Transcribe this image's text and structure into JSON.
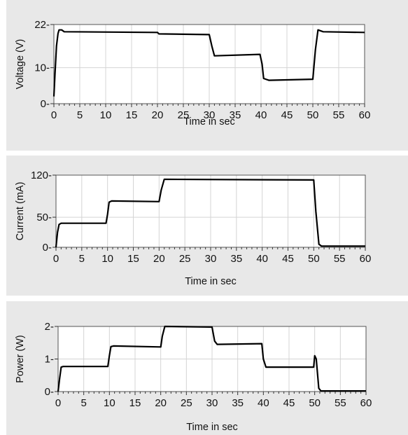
{
  "chart_data": [
    {
      "type": "line",
      "ylabel": "Voltage (V)",
      "xlabel": "Time in sec",
      "xlim": [
        0,
        60
      ],
      "ylim": [
        0,
        22
      ],
      "xticks": [
        0,
        5,
        10,
        15,
        20,
        25,
        30,
        35,
        40,
        45,
        50,
        55,
        60
      ],
      "yticks": [
        0,
        10,
        22
      ],
      "grid": true,
      "series": [
        {
          "x": [
            0,
            0.2,
            0.5,
            0.8,
            1.0,
            1.5,
            2.0,
            20.0,
            20.3,
            30.0,
            30.5,
            31.0,
            39.8,
            40.2,
            40.5,
            41.5,
            50.0,
            50.5,
            51.0,
            52.0,
            60.0
          ],
          "y": [
            2,
            8,
            16,
            19.5,
            20.5,
            20.5,
            20,
            19.8,
            19.4,
            19.2,
            16,
            13.3,
            13.7,
            11,
            7,
            6.5,
            6.8,
            15,
            20.5,
            20,
            19.8
          ]
        }
      ]
    },
    {
      "type": "line",
      "ylabel": "Current (mA)",
      "xlabel": "Time in sec",
      "xlim": [
        0,
        60
      ],
      "ylim": [
        0,
        120
      ],
      "xticks": [
        0,
        5,
        10,
        15,
        20,
        25,
        30,
        35,
        40,
        45,
        50,
        55,
        60
      ],
      "yticks": [
        0,
        50,
        120
      ],
      "grid": true,
      "series": [
        {
          "x": [
            0,
            0.3,
            0.6,
            1.0,
            9.7,
            10.0,
            10.3,
            10.8,
            20.0,
            20.4,
            21.0,
            21.3,
            50.0,
            50.4,
            51.0,
            51.5,
            60.0
          ],
          "y": [
            0,
            25,
            38,
            40,
            40,
            55,
            75,
            77,
            76,
            95,
            113,
            113,
            112,
            60,
            5,
            2,
            2
          ]
        }
      ]
    },
    {
      "type": "line",
      "ylabel": "Power (W)",
      "xlabel": "Time in sec",
      "xlim": [
        0,
        60
      ],
      "ylim": [
        0,
        2
      ],
      "xticks": [
        0,
        5,
        10,
        15,
        20,
        25,
        30,
        35,
        40,
        45,
        50,
        55,
        60
      ],
      "yticks": [
        0,
        1,
        2
      ],
      "grid": true,
      "series": [
        {
          "x": [
            0,
            0.3,
            0.6,
            1.0,
            9.7,
            10.0,
            10.3,
            10.8,
            20.0,
            20.3,
            20.8,
            30.0,
            30.5,
            31.0,
            39.7,
            40.0,
            40.5,
            49.8,
            50.0,
            50.3,
            50.8,
            51.2,
            60.0
          ],
          "y": [
            0,
            0.4,
            0.75,
            0.77,
            0.77,
            1.1,
            1.38,
            1.4,
            1.37,
            1.7,
            2.0,
            1.98,
            1.55,
            1.45,
            1.47,
            1.0,
            0.75,
            0.75,
            1.1,
            1.0,
            0.1,
            0.02,
            0.02
          ]
        }
      ]
    }
  ]
}
